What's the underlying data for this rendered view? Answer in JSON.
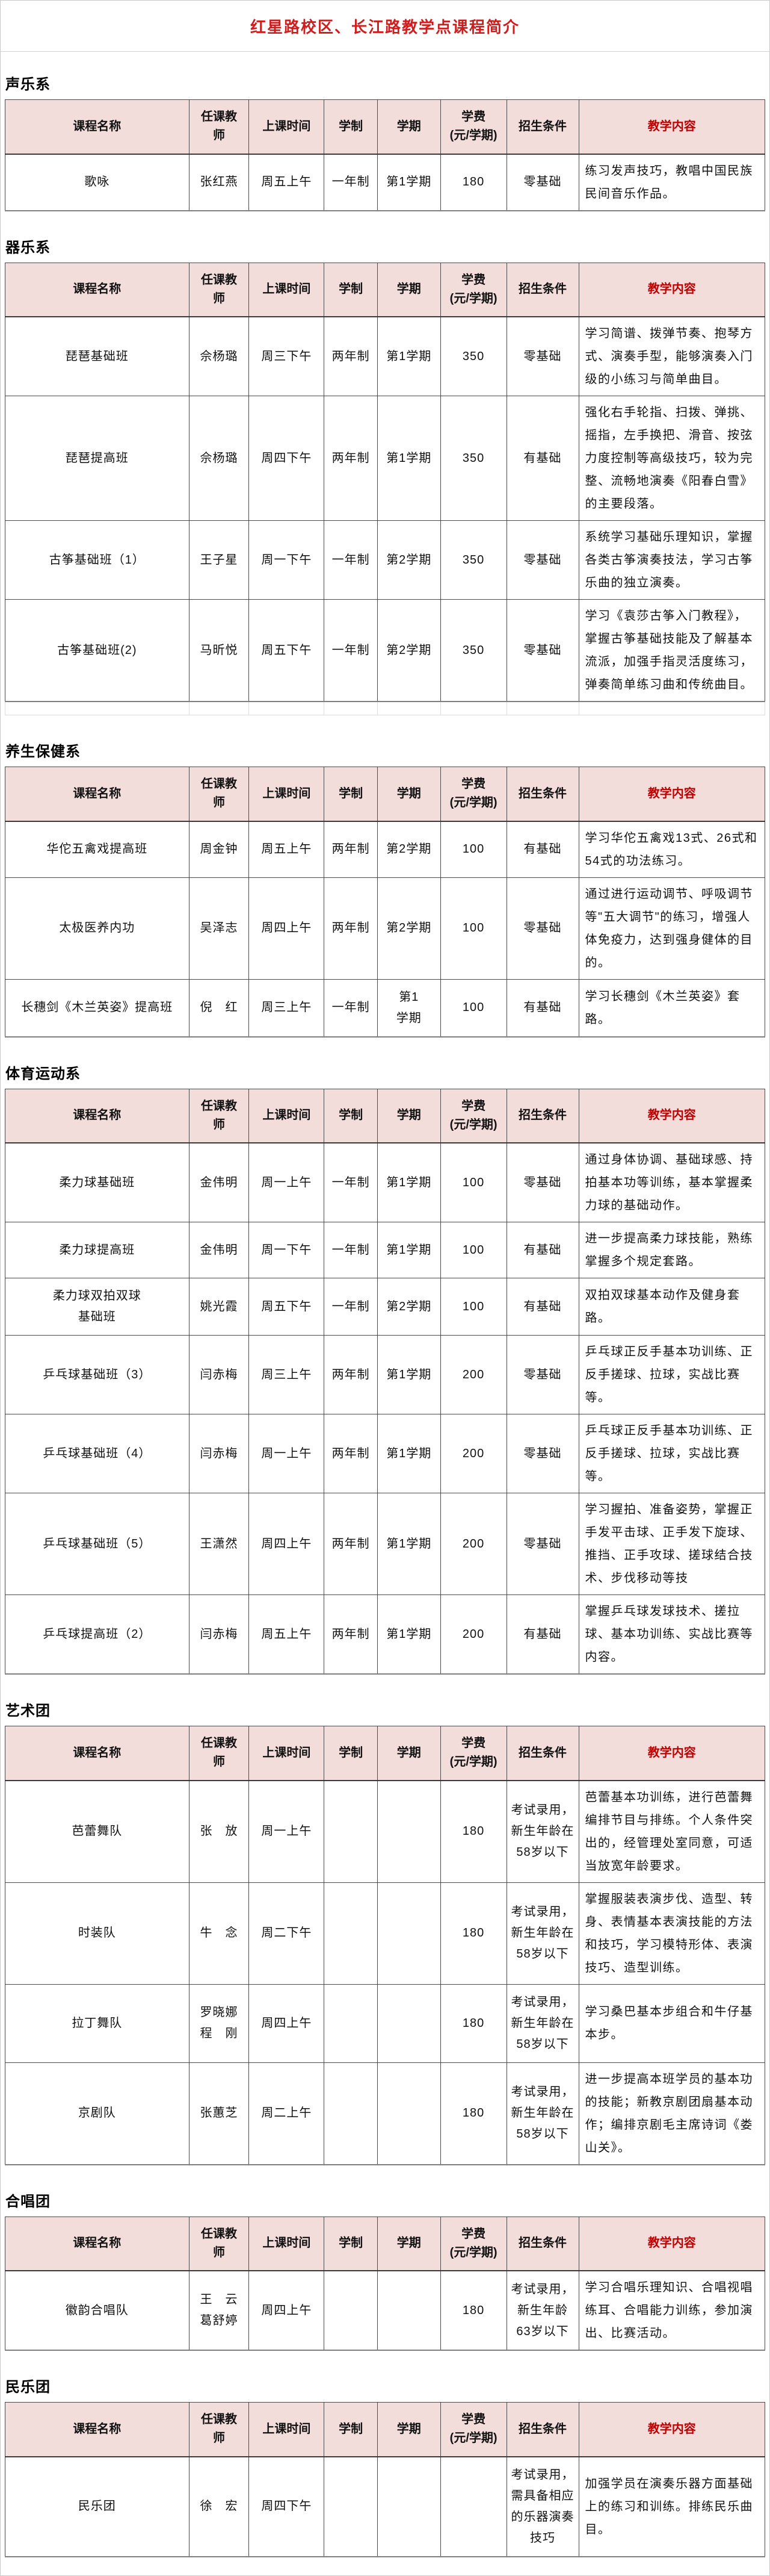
{
  "page": {
    "title": "红星路校区、长江路教学点课程简介"
  },
  "colors": {
    "title_red": "#cf1d1d",
    "teach_header_red": "#c00000",
    "header_bg": "#f2dddb"
  },
  "columns": [
    {
      "label": "课程名称"
    },
    {
      "label": "任课教\n师"
    },
    {
      "label": "上课时间"
    },
    {
      "label": "学制"
    },
    {
      "label": "学期"
    },
    {
      "label": "学费",
      "sub": "(元/学期)"
    },
    {
      "label": "招生条件"
    },
    {
      "label": "教学内容"
    }
  ],
  "sections": [
    {
      "name": "声乐系",
      "rows": [
        {
          "course": "歌咏",
          "teacher": "张红燕",
          "time": "周五上午",
          "duration": "一年制",
          "semester": "第1学期",
          "fee": "180",
          "condition": "零基础",
          "content": "练习发声技巧，教唱中国民族民间音乐作品。"
        }
      ]
    },
    {
      "name": "器乐系",
      "ghost_row": true,
      "rows": [
        {
          "course": "琵琶基础班",
          "teacher": "佘杨璐",
          "time": "周三下午",
          "duration": "两年制",
          "semester": "第1学期",
          "fee": "350",
          "condition": "零基础",
          "content": "学习简谱、拨弹节奏、抱琴方式、演奏手型，能够演奏入门级的小练习与简单曲目。"
        },
        {
          "course": "琵琶提高班",
          "teacher": "佘杨璐",
          "time": "周四下午",
          "duration": "两年制",
          "semester": "第1学期",
          "fee": "350",
          "condition": "有基础",
          "content": "强化右手轮指、扫拨、弹挑、摇指，左手换把、滑音、按弦力度控制等高级技巧，较为完整、流畅地演奏《阳春白雪》的主要段落。"
        },
        {
          "course": "古筝基础班（1）",
          "teacher": "王子星",
          "time": "周一下午",
          "duration": "一年制",
          "semester": "第2学期",
          "fee": "350",
          "condition": "零基础",
          "content": "系统学习基础乐理知识，掌握各类古筝演奏技法，学习古筝乐曲的独立演奏。"
        },
        {
          "course": "古筝基础班(2)",
          "teacher": "马昕悦",
          "time": "周五下午",
          "duration": "一年制",
          "semester": "第2学期",
          "fee": "350",
          "condition": "零基础",
          "content": "学习《袁莎古筝入门教程》，掌握古筝基础技能及了解基本流派，加强手指灵活度练习，弹奏简单练习曲和传统曲目。"
        }
      ]
    },
    {
      "name": "养生保健系",
      "rows": [
        {
          "course": "华佗五禽戏提高班",
          "teacher": "周金钟",
          "time": "周五上午",
          "duration": "两年制",
          "semester": "第2学期",
          "fee": "100",
          "condition": "有基础",
          "content": "学习华佗五禽戏13式、26式和54式的功法练习。"
        },
        {
          "course": "太极医养内功",
          "teacher": "吴泽志",
          "time": "周四上午",
          "duration": "两年制",
          "semester": "第2学期",
          "fee": "100",
          "condition": "零基础",
          "content": "通过进行运动调节、呼吸调节等\"五大调节\"的练习，增强人体免疫力，达到强身健体的目的。"
        },
        {
          "course": "长穗剑《木兰英姿》提高班",
          "teacher": "倪　红",
          "time": "周三上午",
          "duration": "一年制",
          "semester": "第1\n学期",
          "fee": "100",
          "condition": "有基础",
          "content": "学习长穗剑《木兰英姿》套路。"
        }
      ]
    },
    {
      "name": "体育运动系",
      "rows": [
        {
          "course": "柔力球基础班",
          "teacher": "金伟明",
          "time": "周一上午",
          "duration": "一年制",
          "semester": "第1学期",
          "fee": "100",
          "condition": "零基础",
          "content": "通过身体协调、基础球感、持拍基本功等训练，基本掌握柔力球的基础动作。"
        },
        {
          "course": "柔力球提高班",
          "teacher": "金伟明",
          "time": "周一下午",
          "duration": "一年制",
          "semester": "第1学期",
          "fee": "100",
          "condition": "有基础",
          "content": "进一步提高柔力球技能，熟练掌握多个规定套路。"
        },
        {
          "course": "柔力球双拍双球\n基础班",
          "teacher": "姚光霞",
          "time": "周五下午",
          "duration": "一年制",
          "semester": "第2学期",
          "fee": "100",
          "condition": "有基础",
          "content": "双拍双球基本动作及健身套路。"
        },
        {
          "course": "乒乓球基础班（3）",
          "teacher": "闫赤梅",
          "time": "周三上午",
          "duration": "两年制",
          "semester": "第1学期",
          "fee": "200",
          "condition": "零基础",
          "content": "乒乓球正反手基本功训练、正反手搓球、拉球，实战比赛等。"
        },
        {
          "course": "乒乓球基础班（4）",
          "teacher": "闫赤梅",
          "time": "周一上午",
          "duration": "两年制",
          "semester": "第1学期",
          "fee": "200",
          "condition": "零基础",
          "content": "乒乓球正反手基本功训练、正反手搓球、拉球，实战比赛等。"
        },
        {
          "course": "乒乓球基础班（5）",
          "teacher": "王潇然",
          "time": "周四上午",
          "duration": "两年制",
          "semester": "第1学期",
          "fee": "200",
          "condition": "零基础",
          "content": "学习握拍、准备姿势，掌握正手发平击球、正手发下旋球、推挡、正手攻球、搓球结合技术、步伐移动等技",
          "content_clipped": true
        },
        {
          "course": "乒乓球提高班（2）",
          "teacher": "闫赤梅",
          "time": "周五上午",
          "duration": "两年制",
          "semester": "第1学期",
          "fee": "200",
          "condition": "有基础",
          "content": "掌握乒乓球发球技术、搓拉球、基本功训练、实战比赛等内容。"
        }
      ]
    },
    {
      "name": "艺术团",
      "rows": [
        {
          "course": "芭蕾舞队",
          "teacher": "张　放",
          "time": "周一上午",
          "duration": "",
          "semester": "",
          "fee": "180",
          "condition": "考试录用，新生年龄在58岁以下",
          "content": "芭蕾基本功训练，进行芭蕾舞编排节目与排练。个人条件突出的，经管理处室同意，可适当放宽年龄要求。"
        },
        {
          "course": "时装队",
          "teacher": "牛　念",
          "time": "周二下午",
          "duration": "",
          "semester": "",
          "fee": "180",
          "condition": "考试录用，新生年龄在58岁以下",
          "content": "掌握服装表演步伐、造型、转身、表情基本表演技能的方法和技巧，学习模特形体、表演技巧、造型训练。"
        },
        {
          "course": "拉丁舞队",
          "teacher": "罗晓娜\n程　刚",
          "time": "周四上午",
          "duration": "",
          "semester": "",
          "fee": "180",
          "condition": "考试录用，新生年龄在58岁以下",
          "content": "学习桑巴基本步组合和牛仔基本步。"
        },
        {
          "course": "京剧队",
          "teacher": "张蕙芝",
          "time": "周二上午",
          "duration": "",
          "semester": "",
          "fee": "180",
          "condition": "考试录用，新生年龄在58岁以下",
          "content": "进一步提高本班学员的基本功的技能；新教京剧团扇基本动作；编排京剧毛主席诗词《娄山关》。"
        }
      ]
    },
    {
      "name": "合唱团",
      "rows": [
        {
          "course": "徽韵合唱队",
          "teacher": "王　云\n葛舒婷",
          "time": "周四上午",
          "duration": "",
          "semester": "",
          "fee": "180",
          "condition": "考试录用，新生年龄63岁以下",
          "content": "学习合唱乐理知识、合唱视唱练耳、合唱能力训练，参加演出、比赛活动。"
        }
      ]
    },
    {
      "name": "民乐团",
      "rows": [
        {
          "course": "民乐团",
          "teacher": "徐　宏",
          "time": "周四下午",
          "duration": "",
          "semester": "",
          "fee": "",
          "condition": "考试录用，需具备相应的乐器演奏技巧",
          "content": "加强学员在演奏乐器方面基础上的练习和训练。排练民乐曲目。"
        }
      ]
    }
  ]
}
